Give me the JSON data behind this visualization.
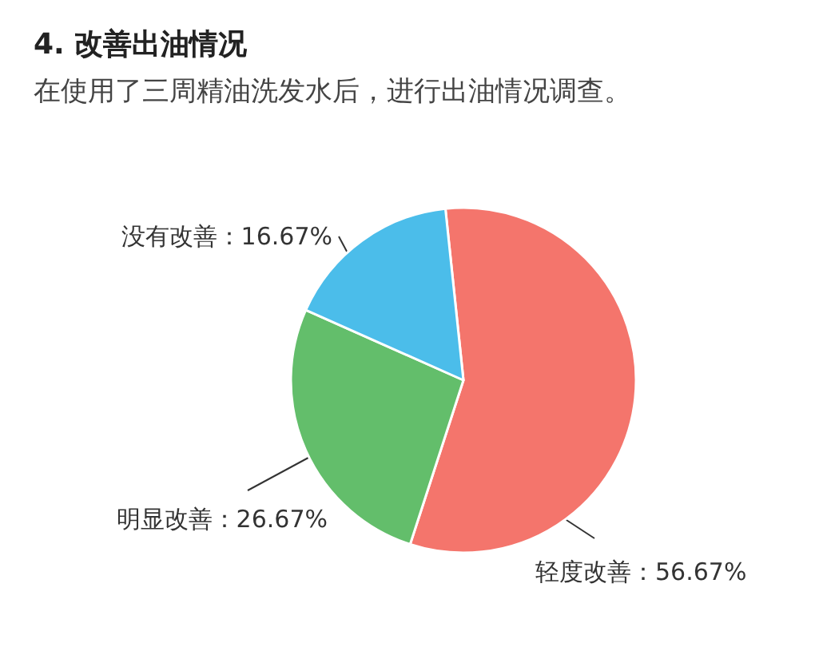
{
  "chart_data": {
    "type": "pie",
    "title": "4. 改善出油情况",
    "subtitle": "在使用了三周精油洗发水后，进行出油情况调查。",
    "categories": [
      "轻度改善",
      "明显改善",
      "没有改善"
    ],
    "values": [
      56.67,
      26.67,
      16.67
    ],
    "value_labels": [
      "56.67%",
      "26.67%",
      "16.67%"
    ],
    "colors": [
      "#f4756c",
      "#63be6b",
      "#4bbdea"
    ],
    "legend": false
  }
}
